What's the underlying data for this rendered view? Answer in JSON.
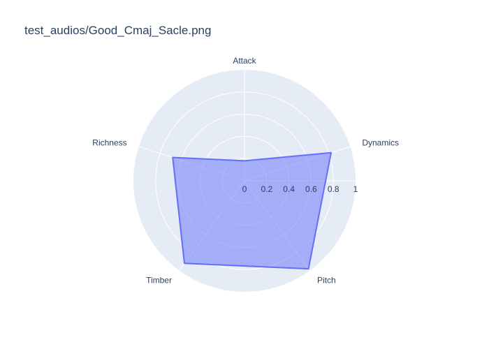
{
  "chart_data": {
    "type": "radar",
    "title": "test_audios/Good_Cmaj_Sacle.png",
    "categories": [
      "Attack",
      "Dynamics",
      "Pitch",
      "Timber",
      "Richness"
    ],
    "values": [
      0.18,
      0.82,
      0.98,
      0.92,
      0.68
    ],
    "radial_ticks": [
      "0",
      "0.2",
      "0.4",
      "0.6",
      "0.8",
      "1"
    ],
    "radial_range": [
      0,
      1
    ],
    "grid": true,
    "colors": {
      "background": "#e5ecf6",
      "grid": "#ffffff",
      "fill": "rgba(99,110,250,0.5)",
      "line": "#636efa",
      "text": "#2a3f5f"
    }
  }
}
